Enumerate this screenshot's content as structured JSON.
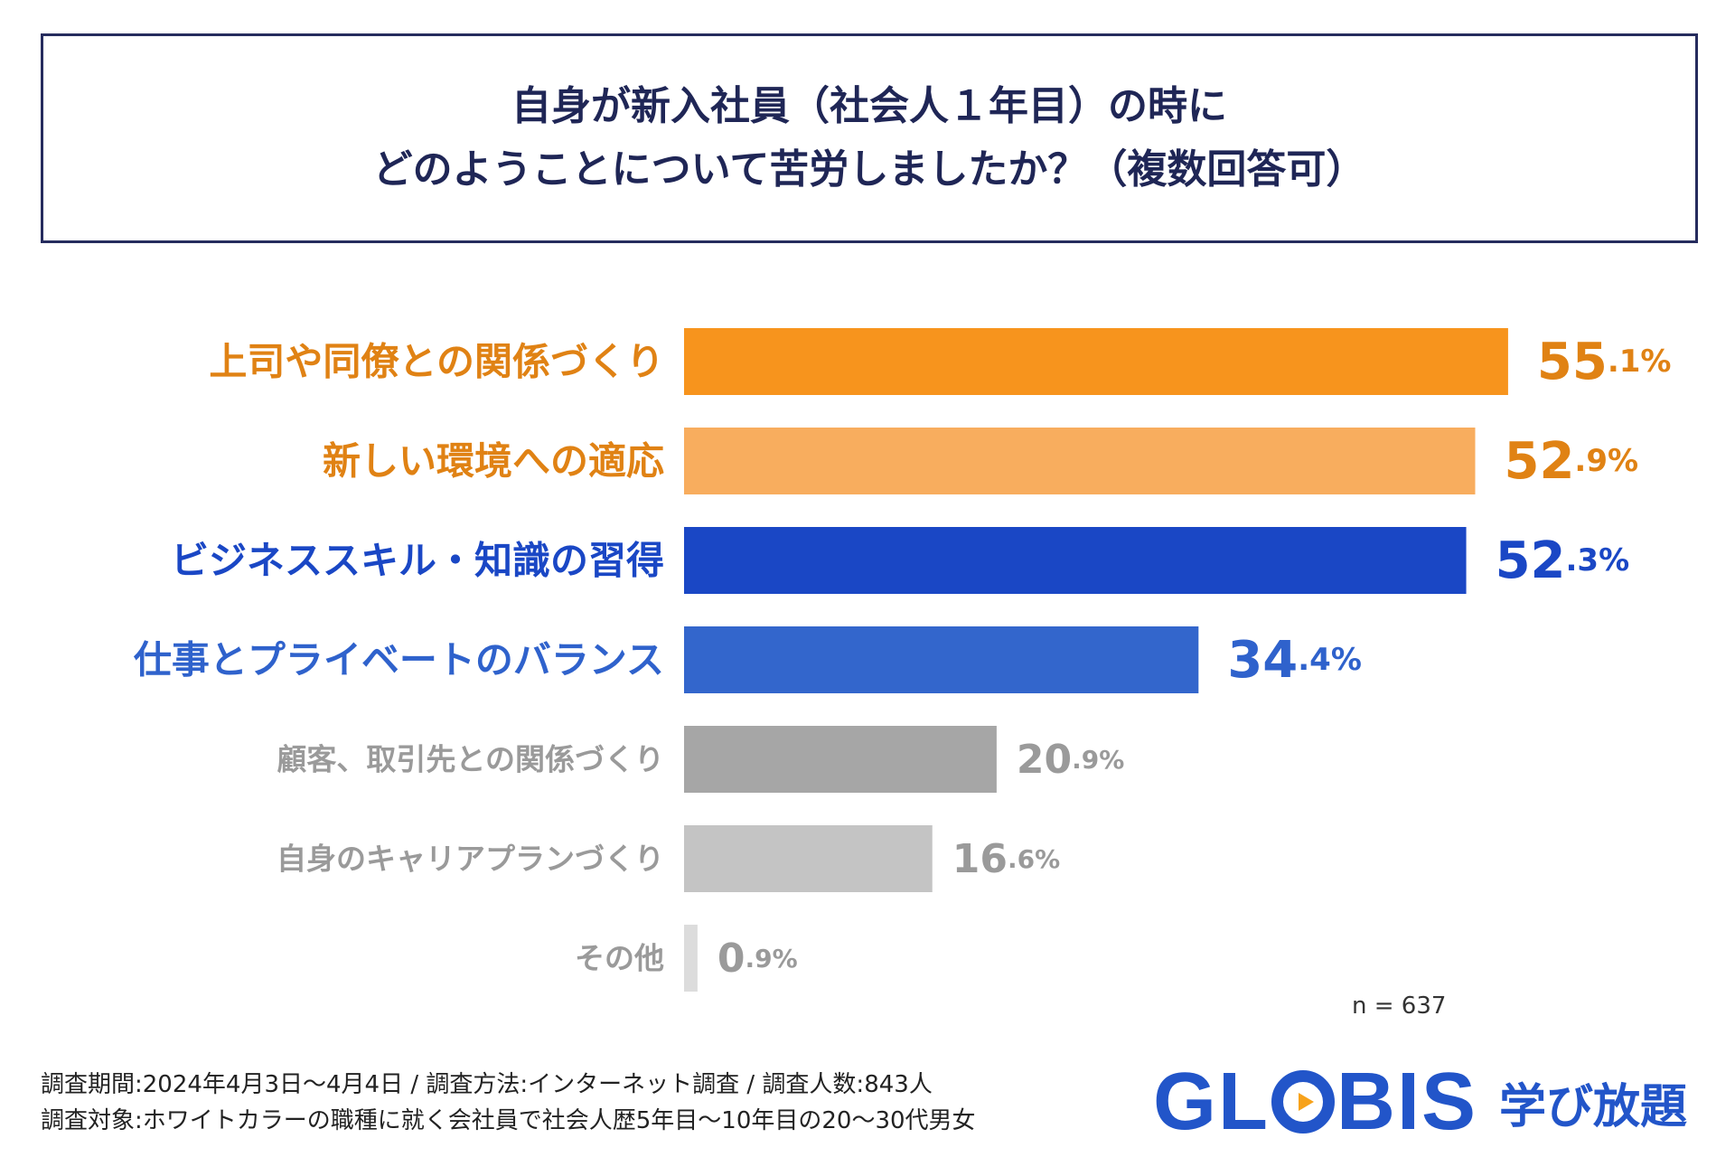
{
  "title": {
    "line1": "自身が新入社員（社会人１年目）の時に",
    "line2": "どのようことについて苦労しましたか？（複数回答可）"
  },
  "chart_data": {
    "type": "bar",
    "orientation": "horizontal",
    "title": "自身が新入社員（社会人１年目）の時に どのようことについて苦労しましたか？（複数回答可）",
    "xlim": [
      0,
      60
    ],
    "unit": "%",
    "categories": [
      "上司や同僚との関係づくり",
      "新しい環境への適応",
      "ビジネススキル・知識の習得",
      "仕事とプライベートのバランス",
      "顧客、取引先との関係づくり",
      "自身のキャリアプランづくり",
      "その他"
    ],
    "values": [
      55.1,
      52.9,
      52.3,
      34.4,
      20.9,
      16.6,
      0.9
    ],
    "value_labels": [
      {
        "int": "55",
        "dec": ".1%"
      },
      {
        "int": "52",
        "dec": ".9%"
      },
      {
        "int": "52",
        "dec": ".3%"
      },
      {
        "int": "34",
        "dec": ".4%"
      },
      {
        "int": "20",
        "dec": ".9%"
      },
      {
        "int": "16",
        "dec": ".6%"
      },
      {
        "int": "0",
        "dec": ".9%"
      }
    ],
    "bar_colors": [
      "#f7941d",
      "#f8ad5e",
      "#1a47c5",
      "#3366cc",
      "#a6a6a6",
      "#c4c4c4",
      "#dcdcdc"
    ],
    "label_colors": [
      "#e08214",
      "#e08214",
      "#1a47c5",
      "#2f62cc",
      "#9a9a9a",
      "#9a9a9a",
      "#9a9a9a"
    ],
    "value_colors": [
      "#e08214",
      "#e08214",
      "#1a47c5",
      "#2f62cc",
      "#9a9a9a",
      "#9a9a9a",
      "#9a9a9a"
    ],
    "emphasis": [
      "large",
      "large",
      "large",
      "large",
      "small",
      "small",
      "small"
    ]
  },
  "sample_size": "n = 637",
  "footnote": {
    "line1": "調査期間:2024年4月3日〜4月4日 / 調査方法:インターネット調査 / 調査人数:843人",
    "line2": "調査対象:ホワイトカラーの職種に就く会社員で社会人歴5年目〜10年目の20〜30代男女"
  },
  "logo": {
    "word_pre": "GL",
    "word_post": "BIS",
    "sub": "学び放題",
    "brand_color": "#2255c9",
    "accent_color": "#f7a21b"
  }
}
